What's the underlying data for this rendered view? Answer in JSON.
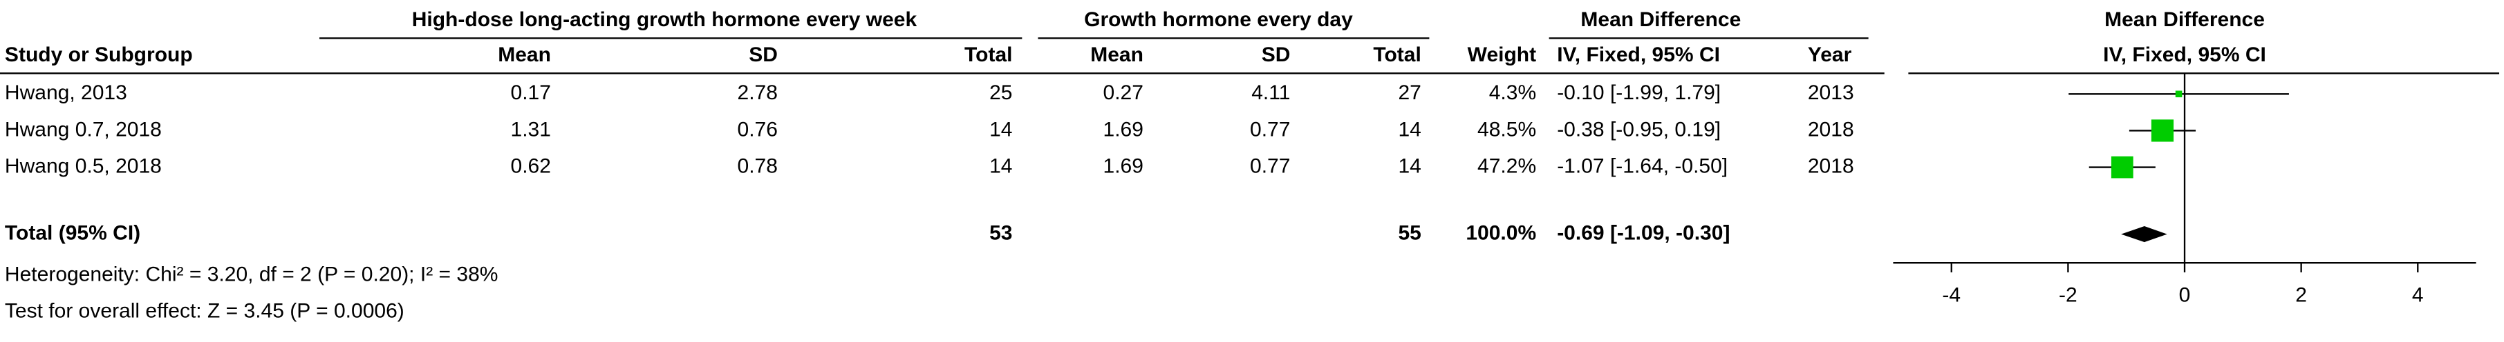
{
  "chart_data": {
    "type": "forest",
    "group1_header": "High-dose long-acting growth hormone every week",
    "group2_header": "Growth hormone every day",
    "md_header": "Mean Difference",
    "plot_header": "Mean Difference",
    "plot_subheader": "IV, Fixed, 95% CI",
    "column_headers": [
      "Study or Subgroup",
      "Mean",
      "SD",
      "Total",
      "Mean",
      "SD",
      "Total",
      "Weight",
      "IV, Fixed, 95% CI",
      "Year"
    ],
    "studies": [
      {
        "name": "Hwang, 2013",
        "mean1": 0.17,
        "sd1": 2.78,
        "n1": 25,
        "mean2": 0.27,
        "sd2": 4.11,
        "n2": 27,
        "weight": 4.3,
        "weight_label": "4.3%",
        "md": -0.1,
        "lo": -1.99,
        "hi": 1.79,
        "ci_label": "-0.10 [-1.99, 1.79]",
        "year": 2013
      },
      {
        "name": "Hwang 0.7, 2018",
        "mean1": 1.31,
        "sd1": 0.76,
        "n1": 14,
        "mean2": 1.69,
        "sd2": 0.77,
        "n2": 14,
        "weight": 48.5,
        "weight_label": "48.5%",
        "md": -0.38,
        "lo": -0.95,
        "hi": 0.19,
        "ci_label": "-0.38 [-0.95, 0.19]",
        "year": 2018
      },
      {
        "name": "Hwang 0.5, 2018",
        "mean1": 0.62,
        "sd1": 0.78,
        "n1": 14,
        "mean2": 1.69,
        "sd2": 0.77,
        "n2": 14,
        "weight": 47.2,
        "weight_label": "47.2%",
        "md": -1.07,
        "lo": -1.64,
        "hi": -0.5,
        "ci_label": "-1.07 [-1.64, -0.50]",
        "year": 2018
      }
    ],
    "total": {
      "name": "Total (95% CI)",
      "n1": 53,
      "n2": 55,
      "weight": 100,
      "weight_label": "100.0%",
      "md": -0.69,
      "lo": -1.09,
      "hi": -0.3,
      "ci_label": "-0.69 [-1.09, -0.30]"
    },
    "heterogeneity": "Heterogeneity: Chi² = 3.20, df = 2 (P = 0.20); I² = 38%",
    "overall_effect": "Test for overall effect: Z = 3.45 (P = 0.0006)",
    "square_color": "#00cc00",
    "xlim": [
      -5,
      5
    ],
    "xticks": [
      -4,
      -2,
      0,
      2,
      4
    ]
  }
}
